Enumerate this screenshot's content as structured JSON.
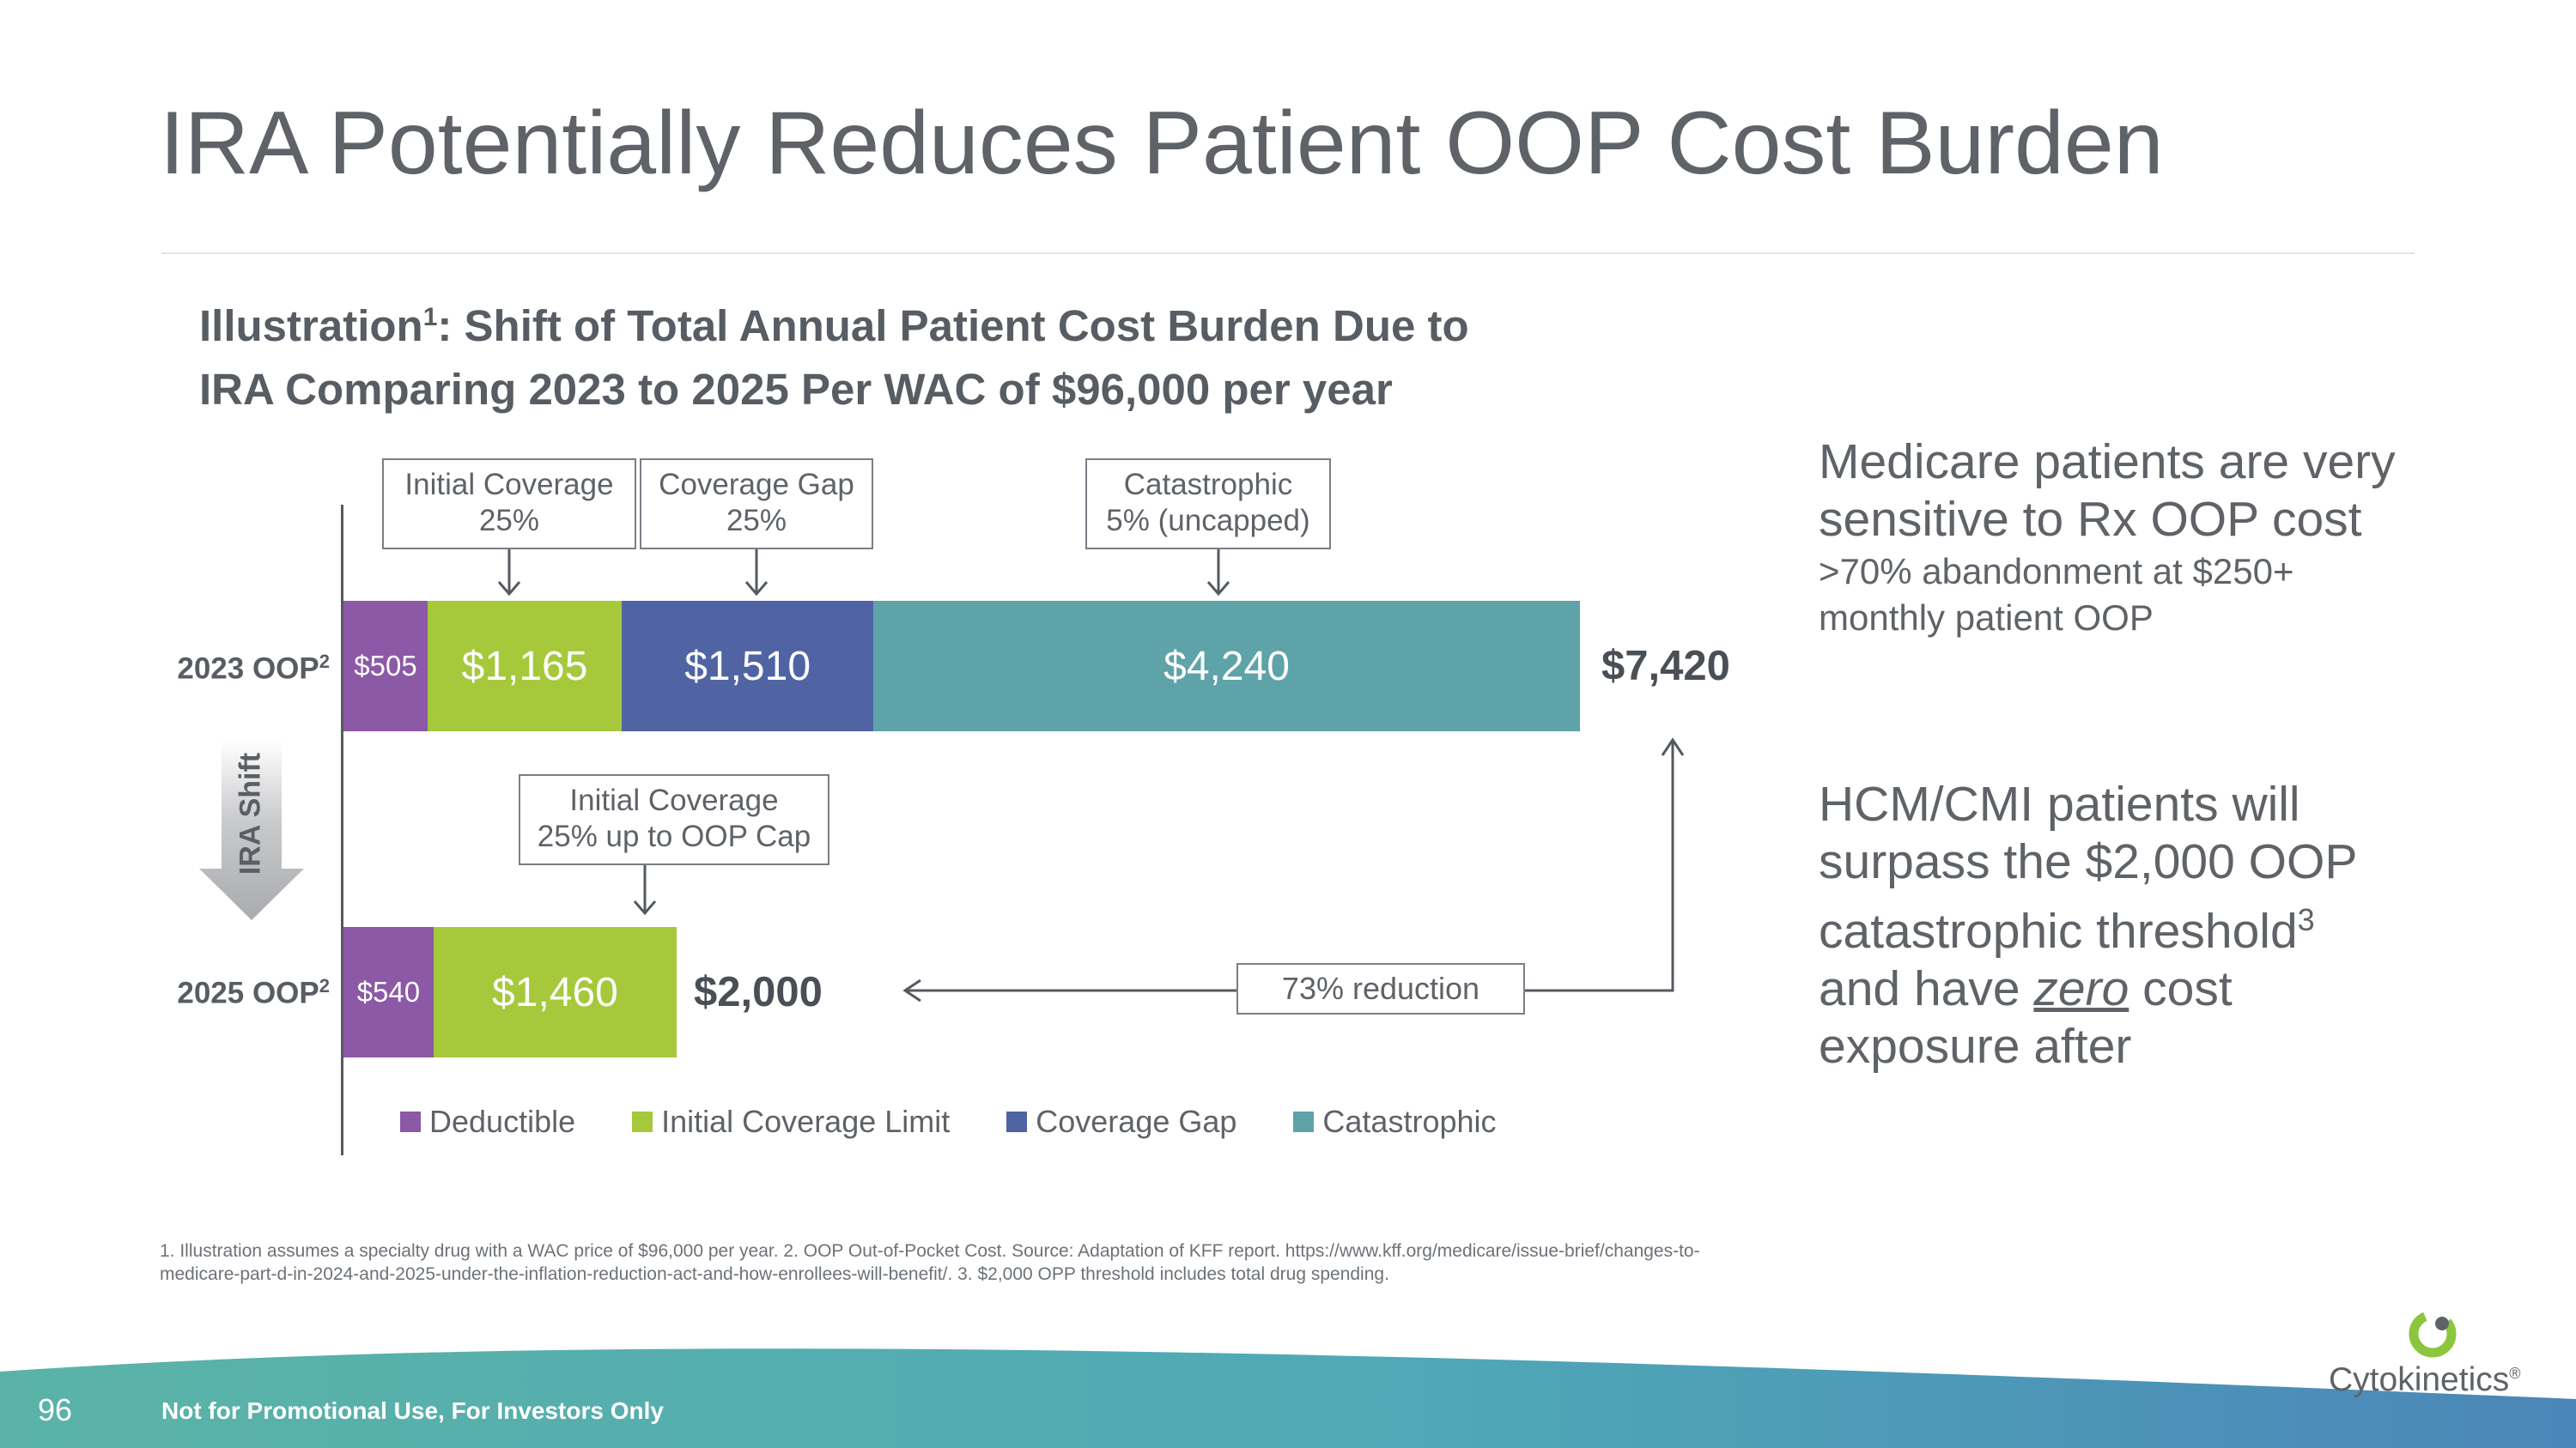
{
  "title": "IRA Potentially Reduces Patient OOP Cost Burden",
  "subtitle": {
    "line1_main": "Illustration",
    "line1_sup": "1",
    "line1_rest": ": Shift of Total Annual Patient Cost Burden Due to",
    "line2": "IRA Comparing 2023 to 2025 Per WAC of $96,000 per year"
  },
  "chart_data": {
    "type": "bar",
    "orientation": "horizontal",
    "stacked": true,
    "title": "Shift of Total Annual Patient Cost Burden Due to IRA Comparing 2023 to 2025 Per WAC of $96,000 per year",
    "categories": [
      {
        "label": "2023 OOP",
        "sup": "2"
      },
      {
        "label": "2025 OOP",
        "sup": "2"
      }
    ],
    "series": [
      {
        "name": "Deductible",
        "color": "#8b59a6",
        "values": [
          505,
          540
        ],
        "labels": [
          "$505",
          "$540"
        ]
      },
      {
        "name": "Initial Coverage Limit",
        "color": "#a5c93a",
        "values": [
          1165,
          1460
        ],
        "labels": [
          "$1,165",
          "$1,460"
        ]
      },
      {
        "name": "Coverage Gap",
        "color": "#5064a4",
        "values": [
          1510,
          0
        ],
        "labels": [
          "$1,510",
          ""
        ]
      },
      {
        "name": "Catastrophic",
        "color": "#5ea3a8",
        "values": [
          4240,
          0
        ],
        "labels": [
          "$4,240",
          ""
        ]
      }
    ],
    "totals": [
      "$7,420",
      "$2,000"
    ],
    "xlim": [
      0,
      7420
    ],
    "annotations_2023": {
      "initial_coverage": {
        "line1": "Initial Coverage",
        "line2": "25%"
      },
      "coverage_gap": {
        "line1": "Coverage Gap",
        "line2": "25%"
      },
      "catastrophic": {
        "line1": "Catastrophic",
        "line2": "5% (uncapped)"
      }
    },
    "annotation_2025": {
      "line1": "Initial Coverage",
      "line2": "25% up to OOP Cap"
    },
    "reduction_label": "73% reduction",
    "shift_label": "IRA Shift",
    "legend": [
      "Deductible",
      "Initial Coverage Limit",
      "Coverage Gap",
      "Catastrophic"
    ]
  },
  "side_panel": {
    "block1": {
      "headline_line1": "Medicare patients are very",
      "headline_line2": "sensitive to Rx OOP cost",
      "detail_line1": ">70% abandonment at $250+",
      "detail_line2": "monthly patient OOP"
    },
    "block2": {
      "line1": "HCM/CMI patients will",
      "line2": "surpass the $2,000 OOP",
      "line3_main": "catastrophic threshold",
      "line3_sup": "3",
      "line4_pre": "and have ",
      "line4_em": "zero",
      "line4_post": " cost",
      "line5": "exposure after"
    }
  },
  "footnote": {
    "line1": "1. Illustration assumes a specialty drug with a WAC price of $96,000 per year. 2. OOP Out-of-Pocket Cost. Source: Adaptation of KFF report. https://www.kff.org/medicare/issue-brief/changes-to-",
    "line2": "medicare-part-d-in-2024-and-2025-under-the-inflation-reduction-act-and-how-enrollees-will-benefit/. 3. $2,000 OPP threshold includes total drug spending."
  },
  "footer": {
    "page_number": "96",
    "note": "Not for Promotional Use, For Investors Only",
    "brand": "Cytokinetics",
    "brand_mark": "®"
  },
  "colors": {
    "deductible": "#8b59a6",
    "initial_coverage": "#a5c93a",
    "coverage_gap": "#5064a4",
    "catastrophic": "#5ea3a8",
    "footer_teal": "#4fa9b6",
    "logo_green": "#8cc63f"
  }
}
